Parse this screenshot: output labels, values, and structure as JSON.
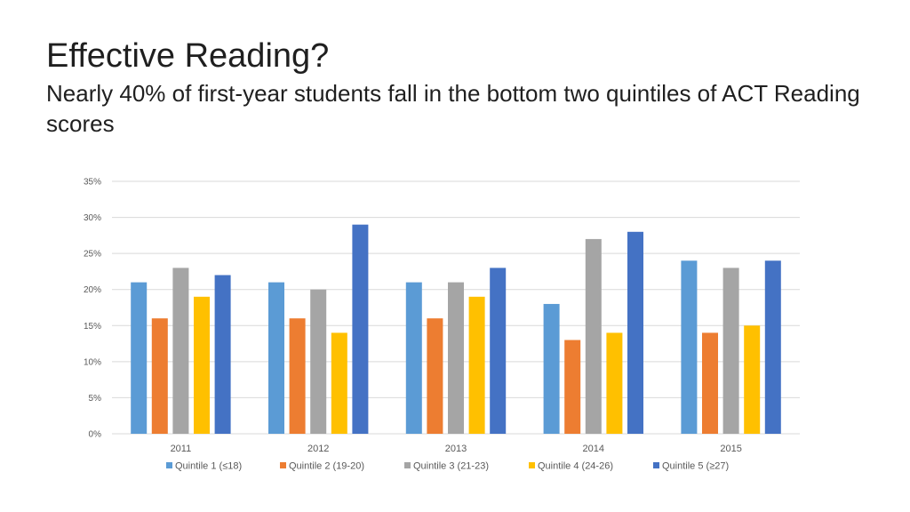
{
  "slide": {
    "title": "Effective Reading?",
    "subtitle": "Nearly 40% of first-year students fall in the bottom two quintiles of ACT Reading scores"
  },
  "chart_data": {
    "type": "bar",
    "title": "",
    "xlabel": "",
    "ylabel": "",
    "categories": [
      "2011",
      "2012",
      "2013",
      "2014",
      "2015"
    ],
    "series": [
      {
        "name": "Quintile 1 (≤18)",
        "color": "#5B9BD5",
        "values": [
          21,
          21,
          21,
          18,
          24
        ]
      },
      {
        "name": "Quintile 2 (19-20)",
        "color": "#ED7D31",
        "values": [
          16,
          16,
          16,
          13,
          14
        ]
      },
      {
        "name": "Quintile 3 (21-23)",
        "color": "#A5A5A5",
        "values": [
          23,
          20,
          21,
          27,
          23
        ]
      },
      {
        "name": "Quintile 4 (24-26)",
        "color": "#FFC000",
        "values": [
          19,
          14,
          19,
          14,
          15
        ]
      },
      {
        "name": "Quintile 5 (≥27)",
        "color": "#4472C4",
        "values": [
          22,
          29,
          23,
          28,
          24
        ]
      }
    ],
    "ylim": [
      0,
      35
    ],
    "yticks": [
      0,
      5,
      10,
      15,
      20,
      25,
      30,
      35
    ],
    "ytick_labels": [
      "0%",
      "5%",
      "10%",
      "15%",
      "20%",
      "25%",
      "30%",
      "35%"
    ],
    "grid": true,
    "gridline_color": "#D9D9D9",
    "legend_position": "bottom"
  }
}
